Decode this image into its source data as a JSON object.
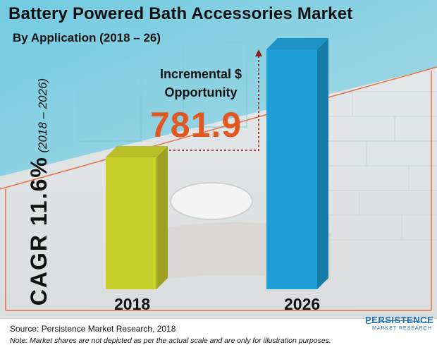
{
  "header": {
    "title": "Battery Powered Bath Accessories Market",
    "subtitle": "By Application (2018 – 26)"
  },
  "cagr": {
    "label": "CAGR 11.6%",
    "period": "(2018 – 2026)"
  },
  "annotation": {
    "label": "Incremental $ Opportunity",
    "value": "781.9",
    "color": "#e2571f"
  },
  "chart_data": {
    "type": "bar",
    "categories": [
      "2018",
      "2026"
    ],
    "values": [
      0.55,
      1.0
    ],
    "value_scale": "relative height (not to scale)",
    "colors": [
      "#c8cf2a",
      "#1e9fd8"
    ],
    "title": "Battery Powered Bath Accessories Market",
    "xlabel": "",
    "ylabel": ""
  },
  "footer": {
    "source": "Source: Persistence Market Research, 2018",
    "note": "Note: Market shares are not depicted as per the actual scale and are only for illustration purposes."
  },
  "logo": {
    "line1": "PERSISTENCE",
    "line2": "MARKET RESEARCH"
  }
}
